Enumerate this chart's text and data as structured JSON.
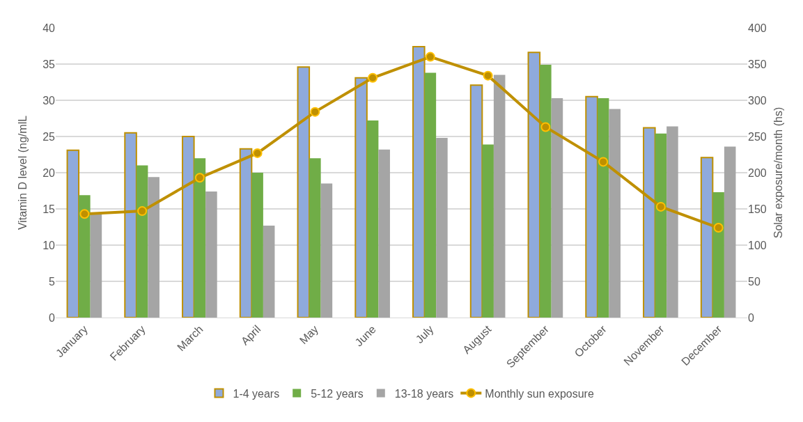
{
  "chart_data": {
    "type": "bar",
    "ylabel": "Vitamin D level (ng/mlL",
    "y2label": "Solar exposure/month (hs)",
    "categories": [
      "January",
      "February",
      "March",
      "April",
      "May",
      "June",
      "July",
      "August",
      "September",
      "October",
      "November",
      "December"
    ],
    "series": [
      {
        "name": "1-4 years",
        "color": "#8faadc",
        "values": [
          23.1,
          25.5,
          25.0,
          23.3,
          34.6,
          33.1,
          37.4,
          32.1,
          36.6,
          30.5,
          26.2,
          22.1
        ]
      },
      {
        "name": "5-12 years",
        "color": "#70ad47",
        "values": [
          16.9,
          21.0,
          22.0,
          20.0,
          22.0,
          27.2,
          33.8,
          23.9,
          34.9,
          30.3,
          25.4,
          17.3
        ]
      },
      {
        "name": "13-18 years",
        "color": "#a5a5a5",
        "values": [
          14.3,
          19.4,
          17.4,
          12.7,
          18.5,
          23.2,
          24.8,
          33.5,
          30.3,
          28.8,
          26.4,
          23.6
        ]
      },
      {
        "name": "Monthly sun exposure",
        "type": "line",
        "axis": "y2",
        "color": "#bf9000",
        "marker": "circle",
        "values": [
          143,
          147,
          193,
          227,
          284,
          331,
          360,
          334,
          263,
          215,
          153,
          124
        ]
      }
    ],
    "ylim": [
      0,
      40
    ],
    "yticks": [
      0,
      5,
      10,
      15,
      20,
      25,
      30,
      35,
      40
    ],
    "y2lim": [
      0,
      400
    ],
    "y2ticks": [
      0,
      50,
      100,
      150,
      200,
      250,
      300,
      350,
      400
    ],
    "grid": "y",
    "legend": "bottom"
  }
}
